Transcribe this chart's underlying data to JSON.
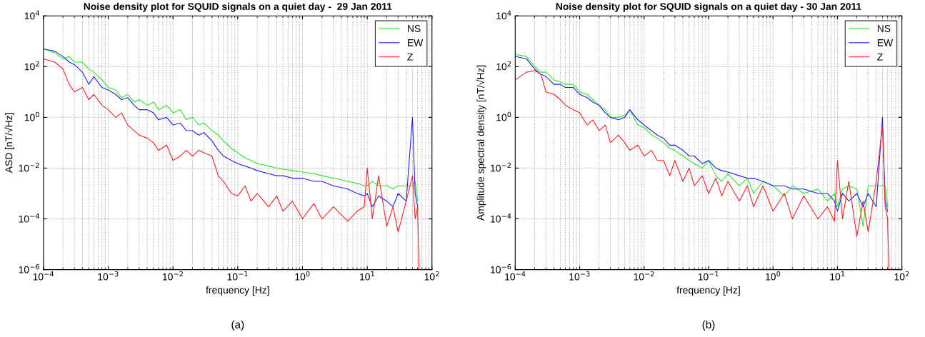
{
  "chart_data": [
    {
      "type": "line",
      "title": "Noise density plot for SQUID signals on a quiet day -  29 Jan 2011",
      "xlabel": "frequency [Hz]",
      "ylabel": "ASD [nT/√Hz]",
      "log": "xy",
      "grid": true,
      "legend": "top right",
      "annotations": [
        "(a)"
      ],
      "xlim": [
        0.0001,
        100
      ],
      "ylim": [
        1e-06,
        10000
      ],
      "xticks": [
        {
          "value": 0.0001,
          "label": "10$^{−4}$"
        },
        {
          "value": 0.001,
          "label": "10$^{−3}$"
        },
        {
          "value": 0.01,
          "label": "10$^{−2}$"
        },
        {
          "value": 0.1,
          "label": "10$^{−1}$"
        },
        {
          "value": 1,
          "label": "10$^{0}$"
        },
        {
          "value": 10,
          "label": "10$^{1}$"
        },
        {
          "value": 100,
          "label": "10$^{2}$"
        }
      ],
      "yticks": [
        {
          "value": 1e-06,
          "label": "10$^{−6}$"
        },
        {
          "value": 0.0001,
          "label": "10$^{−4}$"
        },
        {
          "value": 0.01,
          "label": "10$^{−2}$"
        },
        {
          "value": 1,
          "label": "10$^{0}$"
        },
        {
          "value": 100,
          "label": "10$^{2}$"
        },
        {
          "value": 10000,
          "label": "10$^{4}$"
        }
      ],
      "x": [
        0.0001,
        0.00015,
        0.0002,
        0.00025,
        0.0003,
        0.0004,
        0.0005,
        0.0006,
        0.0008,
        0.001,
        0.0013,
        0.0016,
        0.002,
        0.0025,
        0.003,
        0.004,
        0.005,
        0.006,
        0.008,
        0.01,
        0.013,
        0.016,
        0.02,
        0.025,
        0.03,
        0.04,
        0.05,
        0.06,
        0.08,
        0.1,
        0.13,
        0.16,
        0.2,
        0.3,
        0.4,
        0.5,
        0.7,
        1,
        1.5,
        2,
        3,
        5,
        7,
        9,
        10,
        12,
        15,
        20,
        25,
        30,
        40,
        50,
        55,
        60,
        63
      ],
      "series": [
        {
          "name": "NS",
          "color": "#22ee22",
          "values": [
            500,
            350,
            200,
            250,
            150,
            150,
            80,
            60,
            30,
            15,
            12,
            6,
            8,
            4,
            5,
            3,
            4,
            2,
            3,
            1.5,
            2,
            0.8,
            1,
            0.5,
            0.6,
            0.3,
            0.2,
            0.12,
            0.06,
            0.04,
            0.025,
            0.02,
            0.015,
            0.012,
            0.01,
            0.009,
            0.008,
            0.007,
            0.006,
            0.005,
            0.004,
            0.003,
            0.0025,
            0.002,
            0.002,
            0.003,
            0.002,
            0.002,
            0.0015,
            0.002,
            0.002,
            0.002,
            0.003,
            0.0005,
            null
          ]
        },
        {
          "name": "EW",
          "color": "#2020ff",
          "values": [
            500,
            400,
            250,
            150,
            120,
            60,
            20,
            40,
            15,
            12,
            8,
            5,
            6,
            3,
            2,
            2,
            1.5,
            0.8,
            1,
            0.5,
            0.6,
            0.3,
            0.3,
            0.2,
            0.25,
            0.12,
            0.05,
            0.03,
            0.02,
            0.015,
            0.012,
            0.01,
            0.008,
            0.006,
            0.005,
            0.005,
            0.004,
            0.004,
            0.003,
            0.003,
            0.002,
            0.0015,
            0.001,
            0.0008,
            0.001,
            0.0003,
            0.0008,
            0.0005,
            0.0003,
            0.001,
            0.0005,
            1,
            0.001,
            0.0003,
            null
          ]
        },
        {
          "name": "Z",
          "color": "#ff2020",
          "values": [
            200,
            150,
            80,
            20,
            10,
            15,
            5,
            8,
            3,
            2,
            1,
            1.5,
            0.5,
            0.3,
            0.2,
            0.15,
            0.1,
            0.05,
            0.08,
            0.02,
            0.03,
            0.05,
            0.03,
            0.05,
            0.04,
            0.03,
            0.005,
            0.003,
            0.001,
            0.0008,
            0.002,
            0.0005,
            0.001,
            0.0003,
            0.0008,
            0.0002,
            0.0005,
            0.0001,
            0.0004,
            0.0001,
            0.0003,
            8e-05,
            0.0002,
            0.0003,
            0.01,
            0.0001,
            0.005,
            5e-05,
            0.0003,
            3e-05,
            0.0005,
            0.005,
            0.0001,
            0.0003,
            1e-06
          ]
        }
      ]
    },
    {
      "type": "line",
      "title": "Noise density plot for SQUID signals on a quiet day - 30 Jan 2011",
      "xlabel": "frequency [Hz]",
      "ylabel": "Amplitude spectral density [nT/√Hz]",
      "log": "xy",
      "grid": true,
      "legend": "top right",
      "annotations": [
        "(b)"
      ],
      "xlim": [
        0.0001,
        100
      ],
      "ylim": [
        1e-06,
        10000
      ],
      "xticks": [
        {
          "value": 0.0001,
          "label": "10$^{−4}$"
        },
        {
          "value": 0.001,
          "label": "10$^{−3}$"
        },
        {
          "value": 0.01,
          "label": "10$^{−2}$"
        },
        {
          "value": 0.1,
          "label": "10$^{−1}$"
        },
        {
          "value": 1,
          "label": "10$^{0}$"
        },
        {
          "value": 10,
          "label": "10$^{1}$"
        },
        {
          "value": 100,
          "label": "10$^{2}$"
        }
      ],
      "yticks": [
        {
          "value": 1e-06,
          "label": "10$^{−6}$"
        },
        {
          "value": 0.0001,
          "label": "10$^{−4}$"
        },
        {
          "value": 0.01,
          "label": "10$^{−2}$"
        },
        {
          "value": 1,
          "label": "10$^{0}$"
        },
        {
          "value": 100,
          "label": "10$^{2}$"
        },
        {
          "value": 10000,
          "label": "10$^{4}$"
        }
      ],
      "x": [
        0.0001,
        0.00015,
        0.0002,
        0.00025,
        0.0003,
        0.0004,
        0.0005,
        0.0006,
        0.0008,
        0.001,
        0.0013,
        0.0016,
        0.002,
        0.0025,
        0.003,
        0.004,
        0.005,
        0.006,
        0.008,
        0.01,
        0.013,
        0.016,
        0.02,
        0.025,
        0.03,
        0.04,
        0.05,
        0.06,
        0.08,
        0.1,
        0.13,
        0.16,
        0.2,
        0.3,
        0.4,
        0.5,
        0.7,
        1,
        1.5,
        2,
        3,
        5,
        7,
        9,
        10,
        12,
        15,
        20,
        25,
        30,
        40,
        50,
        55,
        60,
        63
      ],
      "series": [
        {
          "name": "NS",
          "color": "#22ee22",
          "values": [
            300,
            250,
            100,
            60,
            60,
            30,
            25,
            20,
            20,
            10,
            8,
            5,
            3,
            2,
            1,
            1,
            1.2,
            2,
            0.5,
            0.4,
            0.2,
            0.15,
            0.1,
            0.06,
            0.05,
            0.03,
            0.02,
            0.015,
            0.01,
            0.02,
            0.005,
            0.003,
            0.006,
            0.002,
            0.004,
            0.001,
            0.003,
            0.002,
            0.0008,
            0.002,
            0.001,
            0.0015,
            0.0005,
            0.001,
            0.0003,
            0.0015,
            0.002,
            0.0015,
            5e-05,
            0.002,
            0.002,
            0.002,
            0.002,
            0.0003,
            null
          ]
        },
        {
          "name": "EW",
          "color": "#2020ff",
          "values": [
            250,
            200,
            80,
            50,
            40,
            20,
            20,
            15,
            15,
            8,
            6,
            4,
            3,
            1.5,
            1,
            0.8,
            1,
            2,
            0.8,
            0.5,
            0.3,
            0.2,
            0.15,
            0.08,
            0.08,
            0.05,
            0.03,
            0.03,
            0.015,
            0.02,
            0.01,
            0.008,
            0.007,
            0.005,
            0.004,
            0.004,
            0.003,
            0.002,
            0.002,
            0.0015,
            0.0015,
            0.001,
            0.001,
            0.0005,
            0.0002,
            0.001,
            0.0005,
            0.001,
            0.0003,
            0.001,
            0.0003,
            1,
            0.0005,
            0.0002,
            null
          ]
        },
        {
          "name": "Z",
          "color": "#ff2020",
          "values": [
            30,
            60,
            70,
            50,
            10,
            8,
            5,
            3,
            2,
            1.5,
            0.5,
            0.8,
            0.3,
            0.5,
            0.1,
            0.2,
            0.1,
            0.05,
            0.08,
            0.03,
            0.05,
            0.02,
            0.02,
            0.005,
            0.02,
            0.003,
            0.01,
            0.002,
            0.005,
            0.001,
            0.004,
            0.0008,
            0.003,
            0.0005,
            0.002,
            0.0003,
            0.002,
            0.0002,
            0.001,
            0.0001,
            0.0008,
            0.0001,
            0.0003,
            8e-05,
            0.02,
            0.0001,
            0.003,
            2e-05,
            0.0005,
            3e-05,
            0.003,
            0.5,
            0.0003,
            0.0001,
            1e-06
          ]
        }
      ]
    }
  ]
}
